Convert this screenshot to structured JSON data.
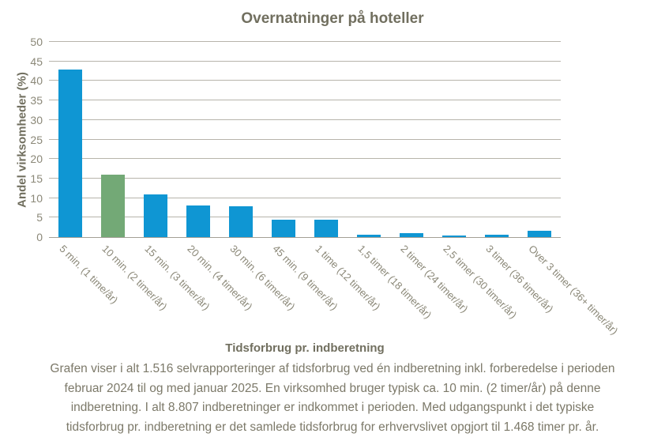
{
  "chart_data": {
    "type": "bar",
    "title": "Overnatninger på hoteller",
    "xlabel": "Tidsforbrug pr. indberetning",
    "ylabel": "Andel virksomheder (%)",
    "ylim": [
      0,
      50
    ],
    "ytick_step": 5,
    "grid": true,
    "legend": "none",
    "categories": [
      "5 min. (1 time/år)",
      "10 min. (2 timer/år)",
      "15 min. (3 timer/år)",
      "20 min. (4 timer/år)",
      "30 min. (6 timer/år)",
      "45 min. (9 timer/år)",
      "1 time (12 timer/år)",
      "1,5 timer (18 timer/år)",
      "2 timer (24 timer/år)",
      "2,5 timer (30 timer/år)",
      "3 timer (36 timer/år)",
      "Over 3 timer (36+ timer/år)"
    ],
    "values": [
      43,
      16,
      11,
      8,
      7.8,
      4.5,
      4.5,
      0.7,
      1,
      0.5,
      0.7,
      1.7
    ],
    "bar_color_default": "#0f96d3",
    "bar_color_highlight": "#73a976",
    "highlight_index": 1,
    "text_color": "#7c7969",
    "gridline_color": "#b7b4ab",
    "axisline_color": "#a3a096"
  },
  "footer": {
    "lines": [
      "Grafen viser i alt 1.516 selvrapporteringer af tidsforbrug ved én indberetning inkl. forberedelse i perioden",
      "februar 2024 til og med januar 2025. En virksomhed bruger typisk ca. 10 min. (2 timer/år) på denne",
      "indberetning. I alt 8.807 indberetninger er indkommet i perioden. Med udgangspunkt i det typiske",
      "tidsforbrug pr. indberetning er det samlede tidsforbrug for erhvervslivet opgjort til 1.468 timer pr. år."
    ]
  }
}
